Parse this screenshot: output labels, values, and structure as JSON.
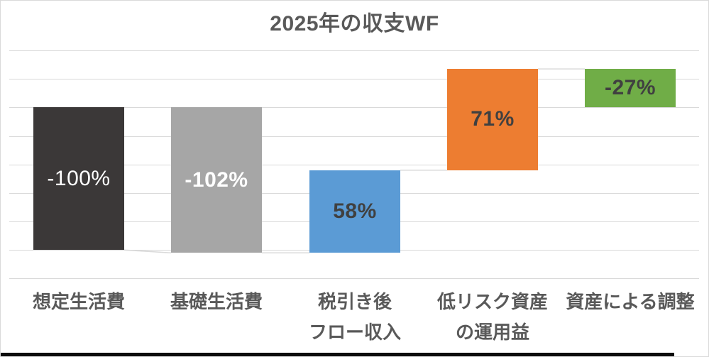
{
  "window": {
    "background_color": "#ffffff",
    "border_color": "#d9d9d9",
    "bottom_edge_bar_color": "#0d0d0d"
  },
  "chart": {
    "title": "2025年の収支WF",
    "title_color": "#595959",
    "gridline_color": "#d9d9d9",
    "connector_color": "#d9d9d9",
    "category_label_color": "#595959",
    "value_label_dark_color": "#404040",
    "value_label_light_color": "#ffffff"
  },
  "chart_data": {
    "type": "bar",
    "variant": "waterfall",
    "title": "2025年の収支WF",
    "categories": [
      "想定生活費",
      "基礎生活費",
      "税引き後フロー収入",
      "低リスク資産の運用益",
      "資産による調整"
    ],
    "category_label_lines": [
      [
        "想定生活費"
      ],
      [
        "基礎生活費"
      ],
      [
        "税引き後",
        "フロー収入"
      ],
      [
        "低リスク資産",
        "の運用益"
      ],
      [
        "資産による調整"
      ]
    ],
    "values": [
      -100,
      -102,
      58,
      71,
      -27
    ],
    "value_labels": [
      "-100%",
      "-102%",
      "58%",
      "71%",
      "-27%"
    ],
    "bar_spans": [
      [
        0,
        -100
      ],
      [
        0,
        -102
      ],
      [
        -102,
        -44
      ],
      [
        -44,
        27
      ],
      [
        27,
        0
      ]
    ],
    "bar_colors": [
      "#3b3838",
      "#a6a6a6",
      "#5b9bd5",
      "#ed7d31",
      "#70ad47"
    ],
    "value_label_colors": [
      "#ffffff",
      "#ffffff",
      "#404040",
      "#404040",
      "#404040"
    ],
    "value_label_bold": [
      false,
      true,
      true,
      true,
      true
    ],
    "connectors": [
      [
        -100,
        -102
      ],
      [
        -102,
        -102
      ],
      [
        -44,
        -44
      ],
      [
        27,
        27
      ]
    ],
    "ylim": [
      -120,
      40
    ],
    "grid_step": 20,
    "unit": "%",
    "xlabel": "",
    "ylabel": "",
    "y_tick_labels_visible": false,
    "legend": false,
    "grid": true
  }
}
